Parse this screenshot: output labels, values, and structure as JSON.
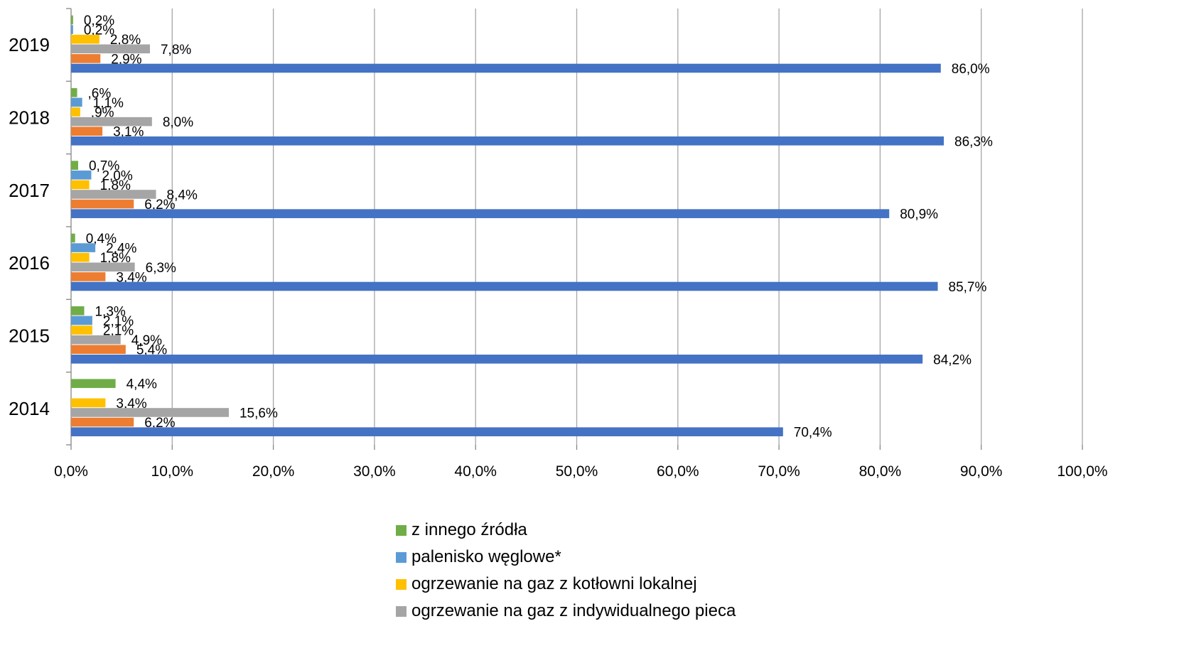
{
  "chart_data": {
    "type": "bar",
    "orientation": "horizontal",
    "categories": [
      "2019",
      "2018",
      "2017",
      "2016",
      "2015",
      "2014"
    ],
    "xlim": [
      0,
      100
    ],
    "x_ticks": [
      "0,0%",
      "10,0%",
      "20,0%",
      "30,0%",
      "40,0%",
      "50,0%",
      "60,0%",
      "70,0%",
      "80,0%",
      "90,0%",
      "100,0%"
    ],
    "grid": "vertical",
    "legend_position": "bottom",
    "series": [
      {
        "name": "z innego źródła",
        "color": "#70AD47",
        "values": [
          0.2,
          0.6,
          0.7,
          0.4,
          1.3,
          4.4
        ],
        "labels": [
          "0,2%",
          ",6%",
          "0,7%",
          "0,4%",
          "1,3%",
          "4,4%"
        ]
      },
      {
        "name": "palenisko węglowe*",
        "color": "#5B9BD5",
        "values": [
          0.2,
          1.1,
          2.0,
          2.4,
          2.1,
          null
        ],
        "labels": [
          "0,2%",
          "1,1%",
          "2,0%",
          "2,4%",
          "2,1%",
          null
        ]
      },
      {
        "name": "ogrzewanie na gaz z kotłowni lokalnej",
        "color": "#FFC000",
        "values": [
          2.8,
          0.9,
          1.8,
          1.8,
          2.1,
          3.4
        ],
        "labels": [
          "2,8%",
          ",9%",
          "1,8%",
          "1,8%",
          "2,1%",
          "3,4%"
        ]
      },
      {
        "name": "ogrzewanie na gaz z indywidualnego pieca",
        "color": "#A5A5A5",
        "values": [
          7.8,
          8.0,
          8.4,
          6.3,
          4.9,
          15.6
        ],
        "labels": [
          "7,8%",
          "8,0%",
          "8,4%",
          "6,3%",
          "4,9%",
          "15,6%"
        ]
      },
      {
        "name": "",
        "color": "#ED7D31",
        "values": [
          2.9,
          3.1,
          6.2,
          3.4,
          5.4,
          6.2
        ],
        "labels": [
          "2,9%",
          "3,1%",
          "6,2%",
          "3,4%",
          "5,4%",
          "6,2%"
        ]
      },
      {
        "name": "",
        "color": "#4472C4",
        "values": [
          86.0,
          86.3,
          80.9,
          85.7,
          84.2,
          70.4
        ],
        "labels": [
          "86,0%",
          "86,3%",
          "80,9%",
          "85,7%",
          "84,2%",
          "70,4%"
        ]
      }
    ]
  },
  "legend": [
    {
      "label": "z innego źródła",
      "color": "#70AD47"
    },
    {
      "label": "palenisko węglowe*",
      "color": "#5B9BD5"
    },
    {
      "label": "ogrzewanie na gaz z kotłowni lokalnej",
      "color": "#FFC000"
    },
    {
      "label": "ogrzewanie na gaz z indywidualnego pieca",
      "color": "#A5A5A5"
    }
  ]
}
